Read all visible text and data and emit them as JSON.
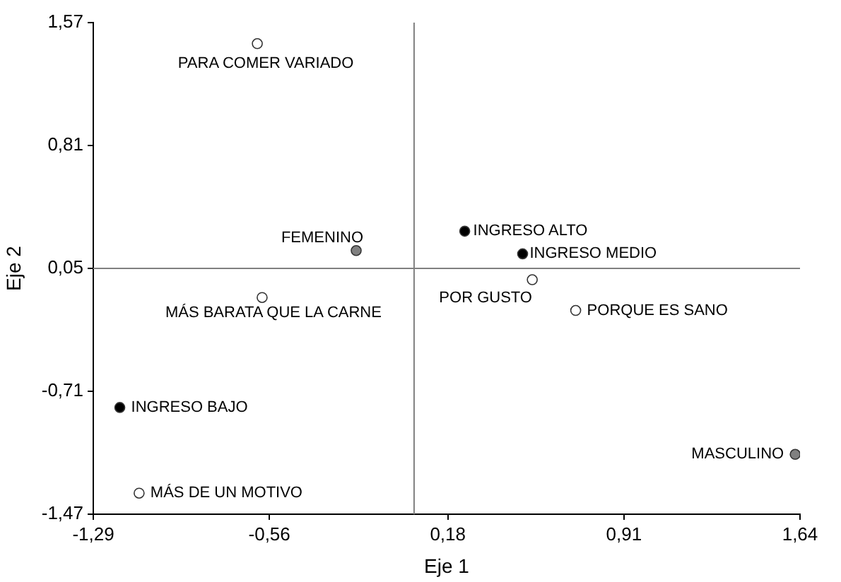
{
  "chart_data": {
    "type": "scatter",
    "xlabel": "Eje 1",
    "ylabel": "Eje 2",
    "xlim": [
      -1.29,
      1.64
    ],
    "ylim": [
      -1.47,
      1.57
    ],
    "xticks": [
      {
        "value": -1.29,
        "label": "-1,29"
      },
      {
        "value": -0.56,
        "label": "-0,56"
      },
      {
        "value": 0.18,
        "label": "0,18"
      },
      {
        "value": 0.91,
        "label": "0,91"
      },
      {
        "value": 1.64,
        "label": "1,64"
      }
    ],
    "yticks": [
      {
        "value": -1.47,
        "label": "-1,47"
      },
      {
        "value": -0.71,
        "label": "-0,71"
      },
      {
        "value": 0.05,
        "label": "0,05"
      },
      {
        "value": 0.81,
        "label": "0,81"
      },
      {
        "value": 1.57,
        "label": "1,57"
      }
    ],
    "grid": false,
    "legend": false,
    "marker": "circle",
    "series": [
      {
        "color": "#ffffff",
        "x": [
          -0.61,
          -0.59,
          0.53,
          0.71,
          -1.1
        ],
        "values": [
          1.44,
          -0.13,
          -0.02,
          -0.21,
          -1.34
        ]
      },
      {
        "color": "#000000",
        "x": [
          0.25,
          0.49,
          -1.18
        ],
        "values": [
          0.28,
          0.14,
          -0.81
        ]
      },
      {
        "color": "#808080",
        "x": [
          -0.2,
          1.62
        ],
        "values": [
          0.16,
          -1.1
        ]
      }
    ],
    "ref_lines": [
      {
        "axis": "x",
        "value": 0.04,
        "color": "#808080"
      },
      {
        "axis": "y",
        "value": 0.05,
        "color": "#808080"
      }
    ],
    "annotations": [
      {
        "text": "PARA COMER VARIADO",
        "x": -0.61,
        "y": 1.44
      },
      {
        "text": "MÁS BARATA QUE LA CARNE",
        "x": -0.59,
        "y": -0.13
      },
      {
        "text": "POR GUSTO",
        "x": 0.53,
        "y": -0.02
      },
      {
        "text": "PORQUE ES SANO",
        "x": 0.71,
        "y": -0.21
      },
      {
        "text": "MÁS DE UN MOTIVO",
        "x": -1.1,
        "y": -1.34
      },
      {
        "text": "INGRESO ALTO",
        "x": 0.25,
        "y": 0.28
      },
      {
        "text": "INGRESO MEDIO",
        "x": 0.49,
        "y": 0.14
      },
      {
        "text": "INGRESO BAJO",
        "x": -1.18,
        "y": -0.81
      },
      {
        "text": "FEMENINO",
        "x": -0.2,
        "y": 0.16
      },
      {
        "text": "MASCULINO",
        "x": 1.62,
        "y": -1.1
      }
    ]
  }
}
